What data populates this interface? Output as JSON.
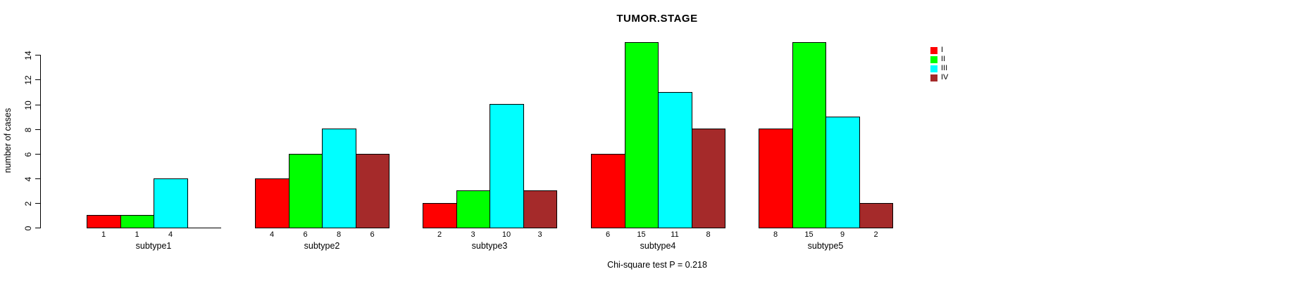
{
  "chart_data": {
    "type": "bar",
    "title": "TUMOR.STAGE",
    "ylabel": "number of cases",
    "footnote": "Chi-square test P = 0.218",
    "categories": [
      "subtype1",
      "subtype2",
      "subtype3",
      "subtype4",
      "subtype5"
    ],
    "series": [
      {
        "name": "I",
        "color": "#FF0000",
        "values": [
          1,
          4,
          2,
          6,
          8
        ]
      },
      {
        "name": "II",
        "color": "#00FF00",
        "values": [
          1,
          6,
          3,
          15,
          15
        ]
      },
      {
        "name": "III",
        "color": "#00FFFF",
        "values": [
          4,
          8,
          10,
          11,
          9
        ]
      },
      {
        "name": "IV",
        "color": "#A52A2A",
        "values": [
          0,
          6,
          3,
          8,
          2
        ]
      }
    ],
    "yticks": [
      0,
      2,
      4,
      6,
      8,
      10,
      12,
      14
    ],
    "ylim": [
      0,
      15
    ],
    "bar_value_labels_shown": true,
    "zero_bars_hidden": true,
    "grid": false,
    "legend": {
      "position": "right",
      "entries": [
        "I",
        "II",
        "III",
        "IV"
      ]
    }
  }
}
